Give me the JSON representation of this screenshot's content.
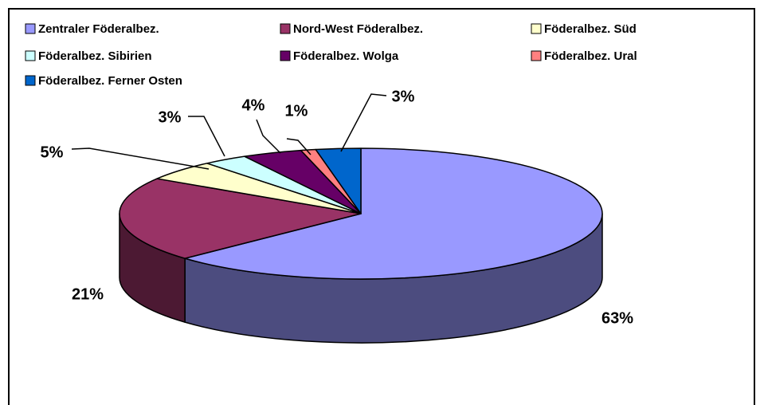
{
  "chart_data": {
    "type": "pie",
    "categories": [
      "Zentraler Föderalbez.",
      "Nord-West Föderalbez.",
      "Föderalbez. Süd",
      "Föderalbez. Sibirien",
      "Föderalbez. Wolga",
      "Föderalbez. Ural",
      "Föderalbez. Ferner Osten"
    ],
    "values": [
      63,
      21,
      5,
      3,
      4,
      1,
      3
    ],
    "value_labels": [
      "63%",
      "21%",
      "5%",
      "3%",
      "4%",
      "1%",
      "3%"
    ],
    "colors": [
      "#9999ff",
      "#993366",
      "#ffffcc",
      "#ccffff",
      "#660066",
      "#ff8080",
      "#0066cc"
    ]
  }
}
